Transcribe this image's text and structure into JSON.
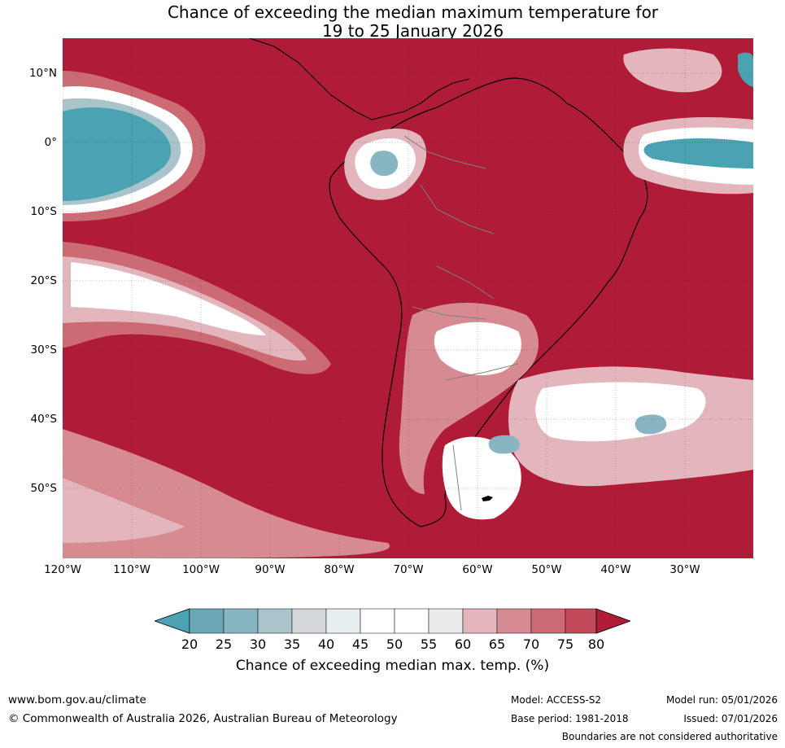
{
  "title": {
    "line1": "Chance of exceeding the median maximum temperature for",
    "line2": "19 to 25 January 2026"
  },
  "map": {
    "lat_labels": [
      "10°N",
      "0°",
      "10°S",
      "20°S",
      "30°S",
      "40°S",
      "50°S"
    ],
    "lon_labels": [
      "120°W",
      "110°W",
      "100°W",
      "90°W",
      "80°W",
      "70°W",
      "60°W",
      "50°W",
      "40°W",
      "30°W"
    ],
    "colors": {
      "c80": "#b01c37",
      "c75": "#c24a59",
      "c70": "#cd6b74",
      "c65": "#d88a92",
      "c60": "#e2b6bc",
      "c55": "#ebebeb",
      "c45": "#ffffff",
      "c40": "#e8eff2",
      "c35": "#d5d8da",
      "c30": "#aac4cb",
      "c25": "#88b5c2",
      "c20": "#4aa2b2",
      "land_border": "#000000",
      "country_border": "#808080"
    }
  },
  "legend": {
    "ticks": [
      "20",
      "25",
      "30",
      "35",
      "40",
      "45",
      "50",
      "55",
      "60",
      "65",
      "70",
      "75",
      "80"
    ],
    "label": "Chance of exceeding median max. temp. (%)",
    "colors": [
      "#4aa2b2",
      "#6ba8b5",
      "#88b5c2",
      "#aac4cb",
      "#d5d8da",
      "#e8eff2",
      "#ffffff",
      "#ffffff",
      "#ebebeb",
      "#e2b6bc",
      "#d88a92",
      "#cd6b74",
      "#c24a59",
      "#b01c37"
    ]
  },
  "footer": {
    "url": "www.bom.gov.au/climate",
    "copyright": "© Commonwealth of Australia 2026, Australian Bureau of Meteorology",
    "model": "Model: ACCESS-S2",
    "base_period": "Base period: 1981-2018",
    "model_run": "Model run: 05/01/2026",
    "issued": "Issued: 07/01/2026",
    "disclaimer": "Boundaries are not considered authoritative"
  }
}
